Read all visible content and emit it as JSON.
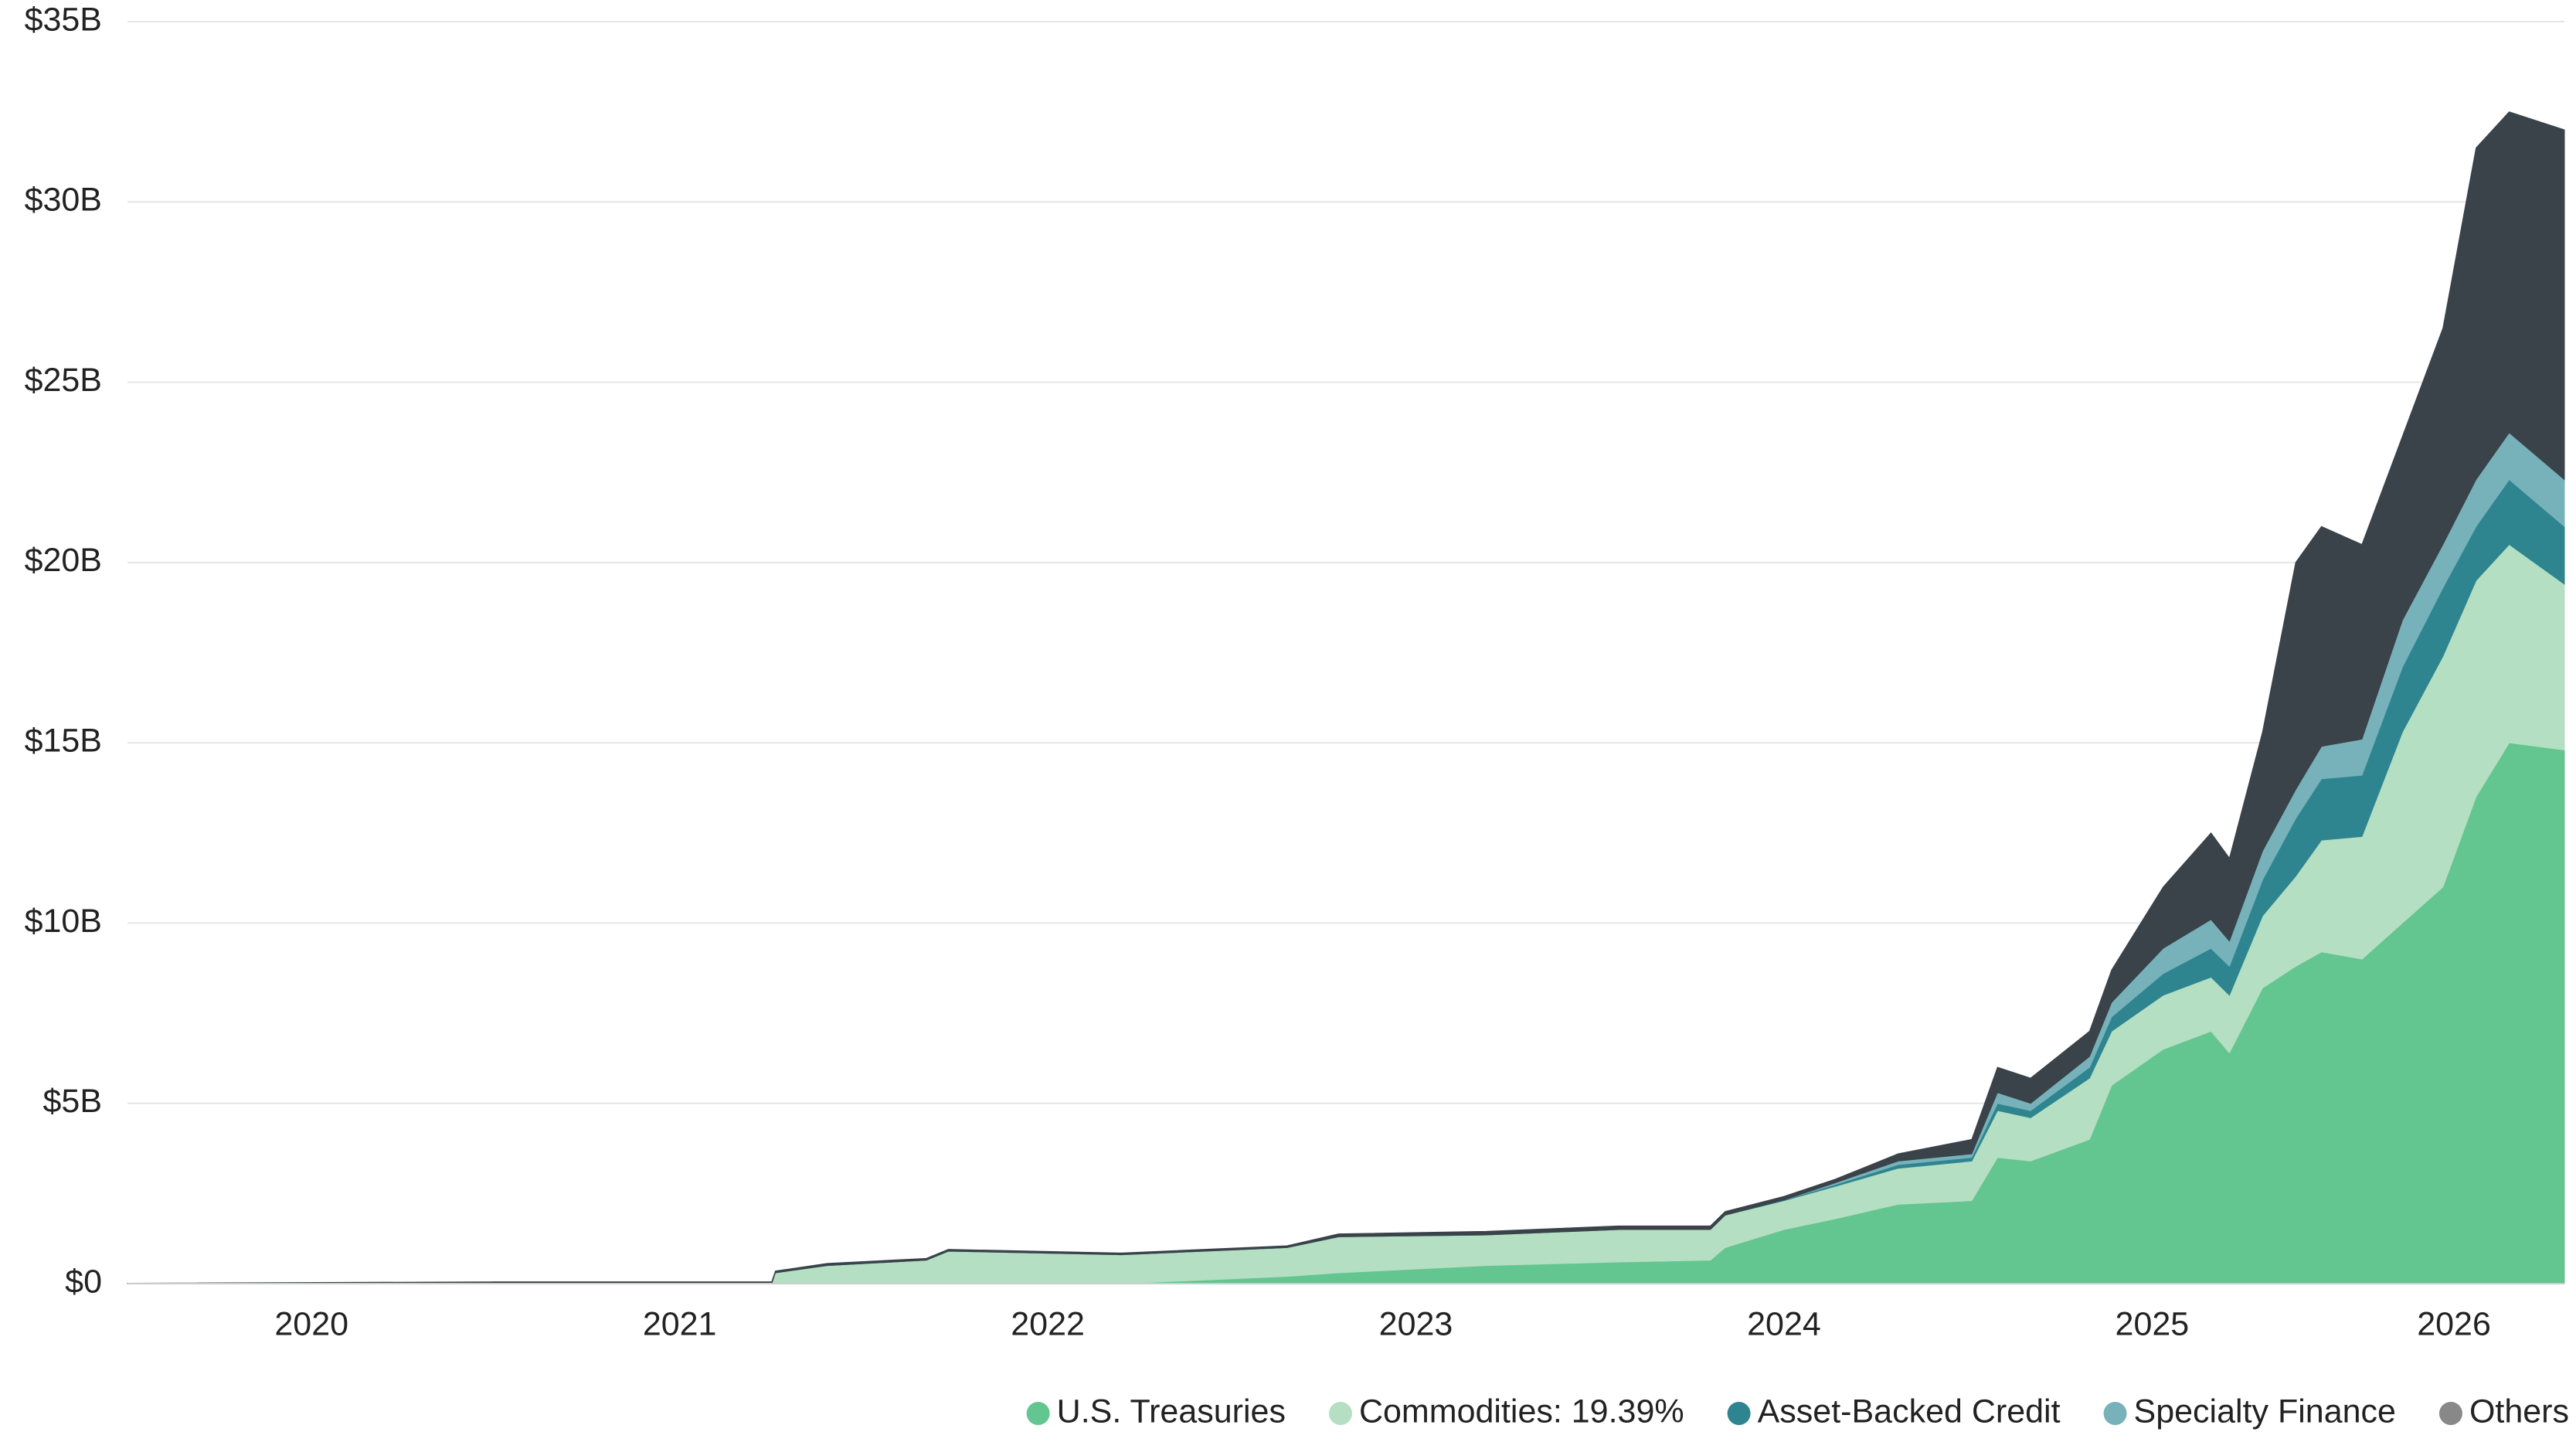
{
  "chart_data": {
    "type": "stacked-area",
    "x": [
      2020.0,
      2021.0,
      2021.75,
      2021.76,
      2021.9,
      2022.17,
      2022.23,
      2022.7,
      2023.15,
      2023.29,
      2023.69,
      2024.05,
      2024.3,
      2024.34,
      2024.5,
      2024.64,
      2024.81,
      2025.01,
      2025.08,
      2025.17,
      2025.33,
      2025.39,
      2025.53,
      2025.66,
      2025.71,
      2025.8,
      2025.89,
      2025.96,
      2026.07,
      2026.18,
      2026.29,
      2026.38,
      2026.47,
      2026.62
    ],
    "series": [
      {
        "name": "U.S. Treasuries",
        "color": "#63c58f",
        "values": [
          0,
          0,
          0,
          0,
          0,
          0,
          0,
          0,
          0.2,
          0.3,
          0.5,
          0.6,
          0.65,
          1.0,
          1.5,
          1.8,
          2.2,
          2.3,
          3.5,
          3.4,
          4.0,
          5.5,
          6.5,
          7.0,
          6.4,
          8.2,
          8.8,
          9.2,
          9.0,
          10.0,
          11.0,
          13.5,
          15.0,
          14.8
        ]
      },
      {
        "name": "Commodities: 19.39%",
        "color": "#b4dfc2",
        "values": [
          0,
          0,
          0,
          0.3,
          0.5,
          0.65,
          0.9,
          0.8,
          0.8,
          1.0,
          0.85,
          0.9,
          0.85,
          0.9,
          0.8,
          0.9,
          1.0,
          1.1,
          1.3,
          1.2,
          1.7,
          1.5,
          1.5,
          1.5,
          1.6,
          2.0,
          2.5,
          3.1,
          3.4,
          5.3,
          6.4,
          6.0,
          5.5,
          4.6
        ]
      },
      {
        "name": "Asset-Backed Credit",
        "color": "#2e8590",
        "values": [
          0,
          0,
          0,
          0,
          0,
          0,
          0,
          0,
          0,
          0,
          0,
          0,
          0,
          0,
          0.02,
          0.05,
          0.1,
          0.1,
          0.2,
          0.2,
          0.3,
          0.4,
          0.6,
          0.8,
          0.8,
          1.0,
          1.6,
          1.7,
          1.7,
          1.8,
          1.9,
          1.5,
          1.8,
          1.6
        ]
      },
      {
        "name": "Specialty Finance",
        "color": "#77b2ba",
        "values": [
          0,
          0,
          0,
          0,
          0,
          0,
          0,
          0,
          0,
          0,
          0,
          0,
          0,
          0,
          0,
          0.05,
          0.1,
          0.1,
          0.3,
          0.2,
          0.3,
          0.4,
          0.7,
          0.8,
          0.7,
          0.8,
          0.8,
          0.9,
          1.0,
          1.3,
          1.2,
          1.3,
          1.3,
          1.3
        ]
      },
      {
        "name": "Others",
        "color": "#3a4349",
        "values": [
          0.01,
          0.05,
          0.05,
          0.05,
          0.06,
          0.05,
          0.05,
          0.05,
          0.05,
          0.08,
          0.1,
          0.1,
          0.1,
          0.1,
          0.1,
          0.1,
          0.2,
          0.4,
          0.7,
          0.7,
          0.7,
          0.9,
          1.7,
          2.4,
          2.3,
          3.3,
          6.3,
          6.1,
          5.4,
          5.1,
          6.0,
          9.2,
          8.9,
          9.7
        ]
      }
    ],
    "xlim": [
      2020.0,
      2026.62
    ],
    "xticks": [
      {
        "value": 2020.5,
        "label": "2020"
      },
      {
        "value": 2021.5,
        "label": "2021"
      },
      {
        "value": 2022.5,
        "label": "2022"
      },
      {
        "value": 2023.5,
        "label": "2023"
      },
      {
        "value": 2024.5,
        "label": "2024"
      },
      {
        "value": 2025.5,
        "label": "2025"
      },
      {
        "value": 2026.32,
        "label": "2026"
      }
    ],
    "ylim": [
      0,
      35
    ],
    "yticks": [
      {
        "value": 0,
        "label": "$0"
      },
      {
        "value": 5,
        "label": "$5B"
      },
      {
        "value": 10,
        "label": "$10B"
      },
      {
        "value": 15,
        "label": "$15B"
      },
      {
        "value": 20,
        "label": "$20B"
      },
      {
        "value": 25,
        "label": "$25B"
      },
      {
        "value": 30,
        "label": "$30B"
      },
      {
        "value": 35,
        "label": "$35B"
      }
    ],
    "grid": true,
    "legend": "bottom-right"
  }
}
